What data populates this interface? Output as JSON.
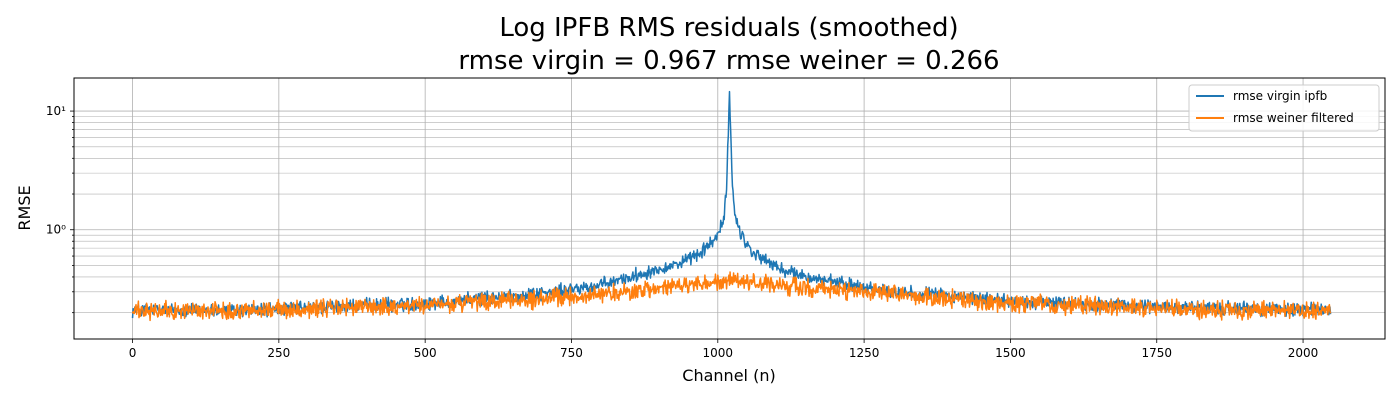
{
  "chart_data": {
    "type": "line",
    "title_line1": "Log IPFB RMS residuals (smoothed)",
    "title_line2": "rmse virgin = 0.967 rmse weiner = 0.266",
    "xlabel": "Channel (n)",
    "ylabel": "RMSE",
    "xlim": [
      -100,
      2140
    ],
    "ylim": [
      0.12,
      19
    ],
    "yscale": "log",
    "x_ticks": [
      0,
      250,
      500,
      750,
      1000,
      1250,
      1500,
      1750,
      2000
    ],
    "x_tick_labels": [
      "0",
      "250",
      "500",
      "750",
      "1000",
      "1250",
      "1500",
      "1750",
      "2000"
    ],
    "y_major_ticks": [
      1,
      10
    ],
    "y_tick_labels": [
      "10⁰",
      "10¹"
    ],
    "grid": true,
    "legend_position": "upper-right",
    "n_channels": 2048,
    "series": [
      {
        "name": "rmse virgin ipfb",
        "color": "#1f77b4",
        "envelope": {
          "x": [
            0,
            200,
            500,
            700,
            800,
            850,
            900,
            950,
            980,
            1000,
            1010,
            1015,
            1020,
            1025,
            1030,
            1040,
            1060,
            1100,
            1150,
            1200,
            1250,
            1300,
            1350,
            1500,
            1800,
            2047
          ],
          "y": [
            0.21,
            0.21,
            0.24,
            0.29,
            0.34,
            0.4,
            0.47,
            0.55,
            0.7,
            0.9,
            1.2,
            2.2,
            14.5,
            2.2,
            1.3,
            0.9,
            0.65,
            0.48,
            0.4,
            0.36,
            0.33,
            0.3,
            0.29,
            0.25,
            0.22,
            0.21
          ]
        }
      },
      {
        "name": "rmse weiner filtered",
        "color": "#ff7f0e",
        "envelope": {
          "x": [
            0,
            200,
            500,
            700,
            850,
            950,
            1024,
            1100,
            1200,
            1350,
            1500,
            1800,
            2047
          ],
          "y": [
            0.205,
            0.21,
            0.23,
            0.26,
            0.3,
            0.34,
            0.37,
            0.34,
            0.31,
            0.27,
            0.24,
            0.215,
            0.205
          ]
        }
      }
    ]
  }
}
